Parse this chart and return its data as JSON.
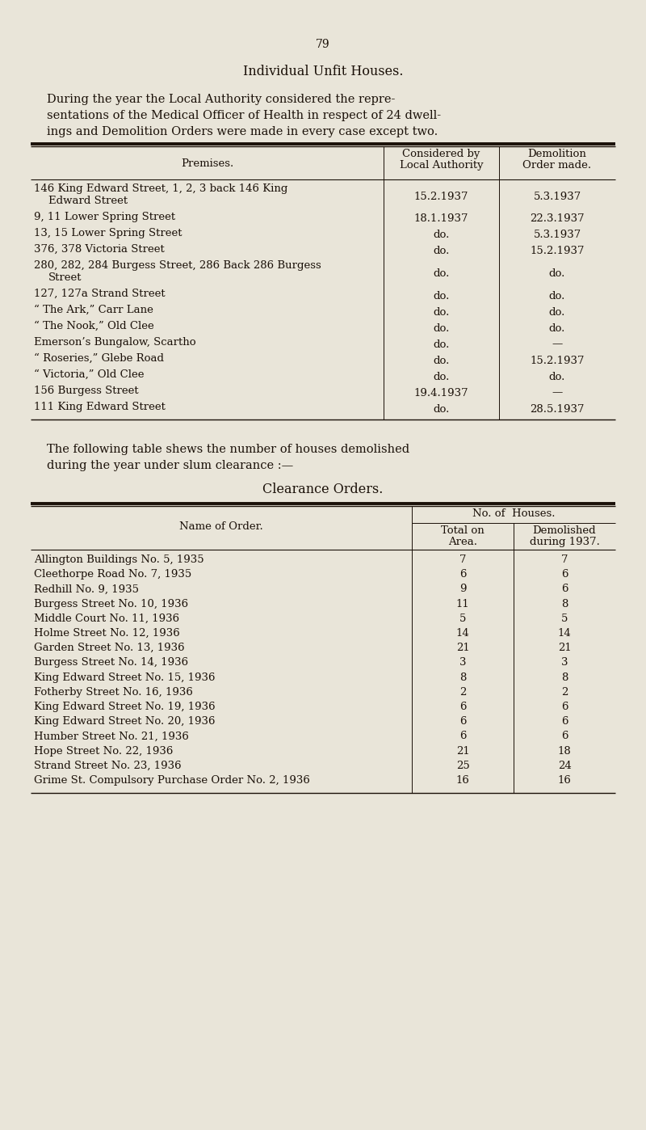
{
  "bg_color": "#e9e5d9",
  "text_color": "#1a1008",
  "page_number": "79",
  "title": "Individual Unfit Houses.",
  "intro_text": "During the year the Local Authority considered the repre-\nsentations of the Medical Officer of Health in respect of 24 dwell-\nings and Demolition Orders were made in every case except two.",
  "table1_rows": [
    [
      "146 King Edward Street, 1, 2, 3 back 146 King",
      "Edward Street",
      "15.2.1937",
      "5.3.1937"
    ],
    [
      "9, 11 Lower Spring Street",
      "",
      "18.1.1937",
      "22.3.1937"
    ],
    [
      "13, 15 Lower Spring Street",
      "",
      "do.",
      "5.3.1937"
    ],
    [
      "376, 378 Victoria Street",
      "",
      "do.",
      "15.2.1937"
    ],
    [
      "280, 282, 284 Burgess Street, 286 Back 286 Burgess",
      "Street",
      "do.",
      "do."
    ],
    [
      "127, 127a Strand Street",
      "",
      "do.",
      "do."
    ],
    [
      "“ The Ark,” Carr Lane",
      "",
      "do.",
      "do."
    ],
    [
      "“ The Nook,” Old Clee",
      "",
      "do.",
      "do."
    ],
    [
      "Emerson’s Bungalow, Scartho",
      "",
      "do.",
      "—"
    ],
    [
      "“ Roseries,” Glebe Road",
      "",
      "do.",
      "15.2.1937"
    ],
    [
      "“ Victoria,” Old Clee",
      "",
      "do.",
      "do."
    ],
    [
      "156 Burgess Street",
      "",
      "19.4.1937",
      "—"
    ],
    [
      "111 King Edward Street",
      "",
      "do.",
      "28.5.1937"
    ]
  ],
  "between_text": "The following table shews the number of houses demolished\nduring the year under slum clearance :—",
  "table2_title": "Clearance Orders.",
  "table2_rows": [
    [
      "Allington Buildings No. 5, 1935",
      "7",
      "7"
    ],
    [
      "Cleethorpe Road No. 7, 1935",
      "6",
      "6"
    ],
    [
      "Redhill No. 9, 1935",
      "9",
      "6"
    ],
    [
      "Burgess Street No. 10, 1936",
      "11",
      "8"
    ],
    [
      "Middle Court No. 11, 1936",
      "5",
      "5"
    ],
    [
      "Holme Street No. 12, 1936",
      "14",
      "14"
    ],
    [
      "Garden Street No. 13, 1936",
      "21",
      "21"
    ],
    [
      "Burgess Street No. 14, 1936",
      "3",
      "3"
    ],
    [
      "King Edward Street No. 15, 1936",
      "8",
      "8"
    ],
    [
      "Fotherby Street No. 16, 1936",
      "2",
      "2"
    ],
    [
      "King Edward Street No. 19, 1936",
      "6",
      "6"
    ],
    [
      "King Edward Street No. 20, 1936",
      "6",
      "6"
    ],
    [
      "Humber Street No. 21, 1936",
      "6",
      "6"
    ],
    [
      "Hope Street No. 22, 1936",
      "21",
      "18"
    ],
    [
      "Strand Street No. 23, 1936",
      "25",
      "24"
    ],
    [
      "Grime St. Compulsory Purchase Order No. 2, 1936",
      "16",
      "16"
    ]
  ]
}
